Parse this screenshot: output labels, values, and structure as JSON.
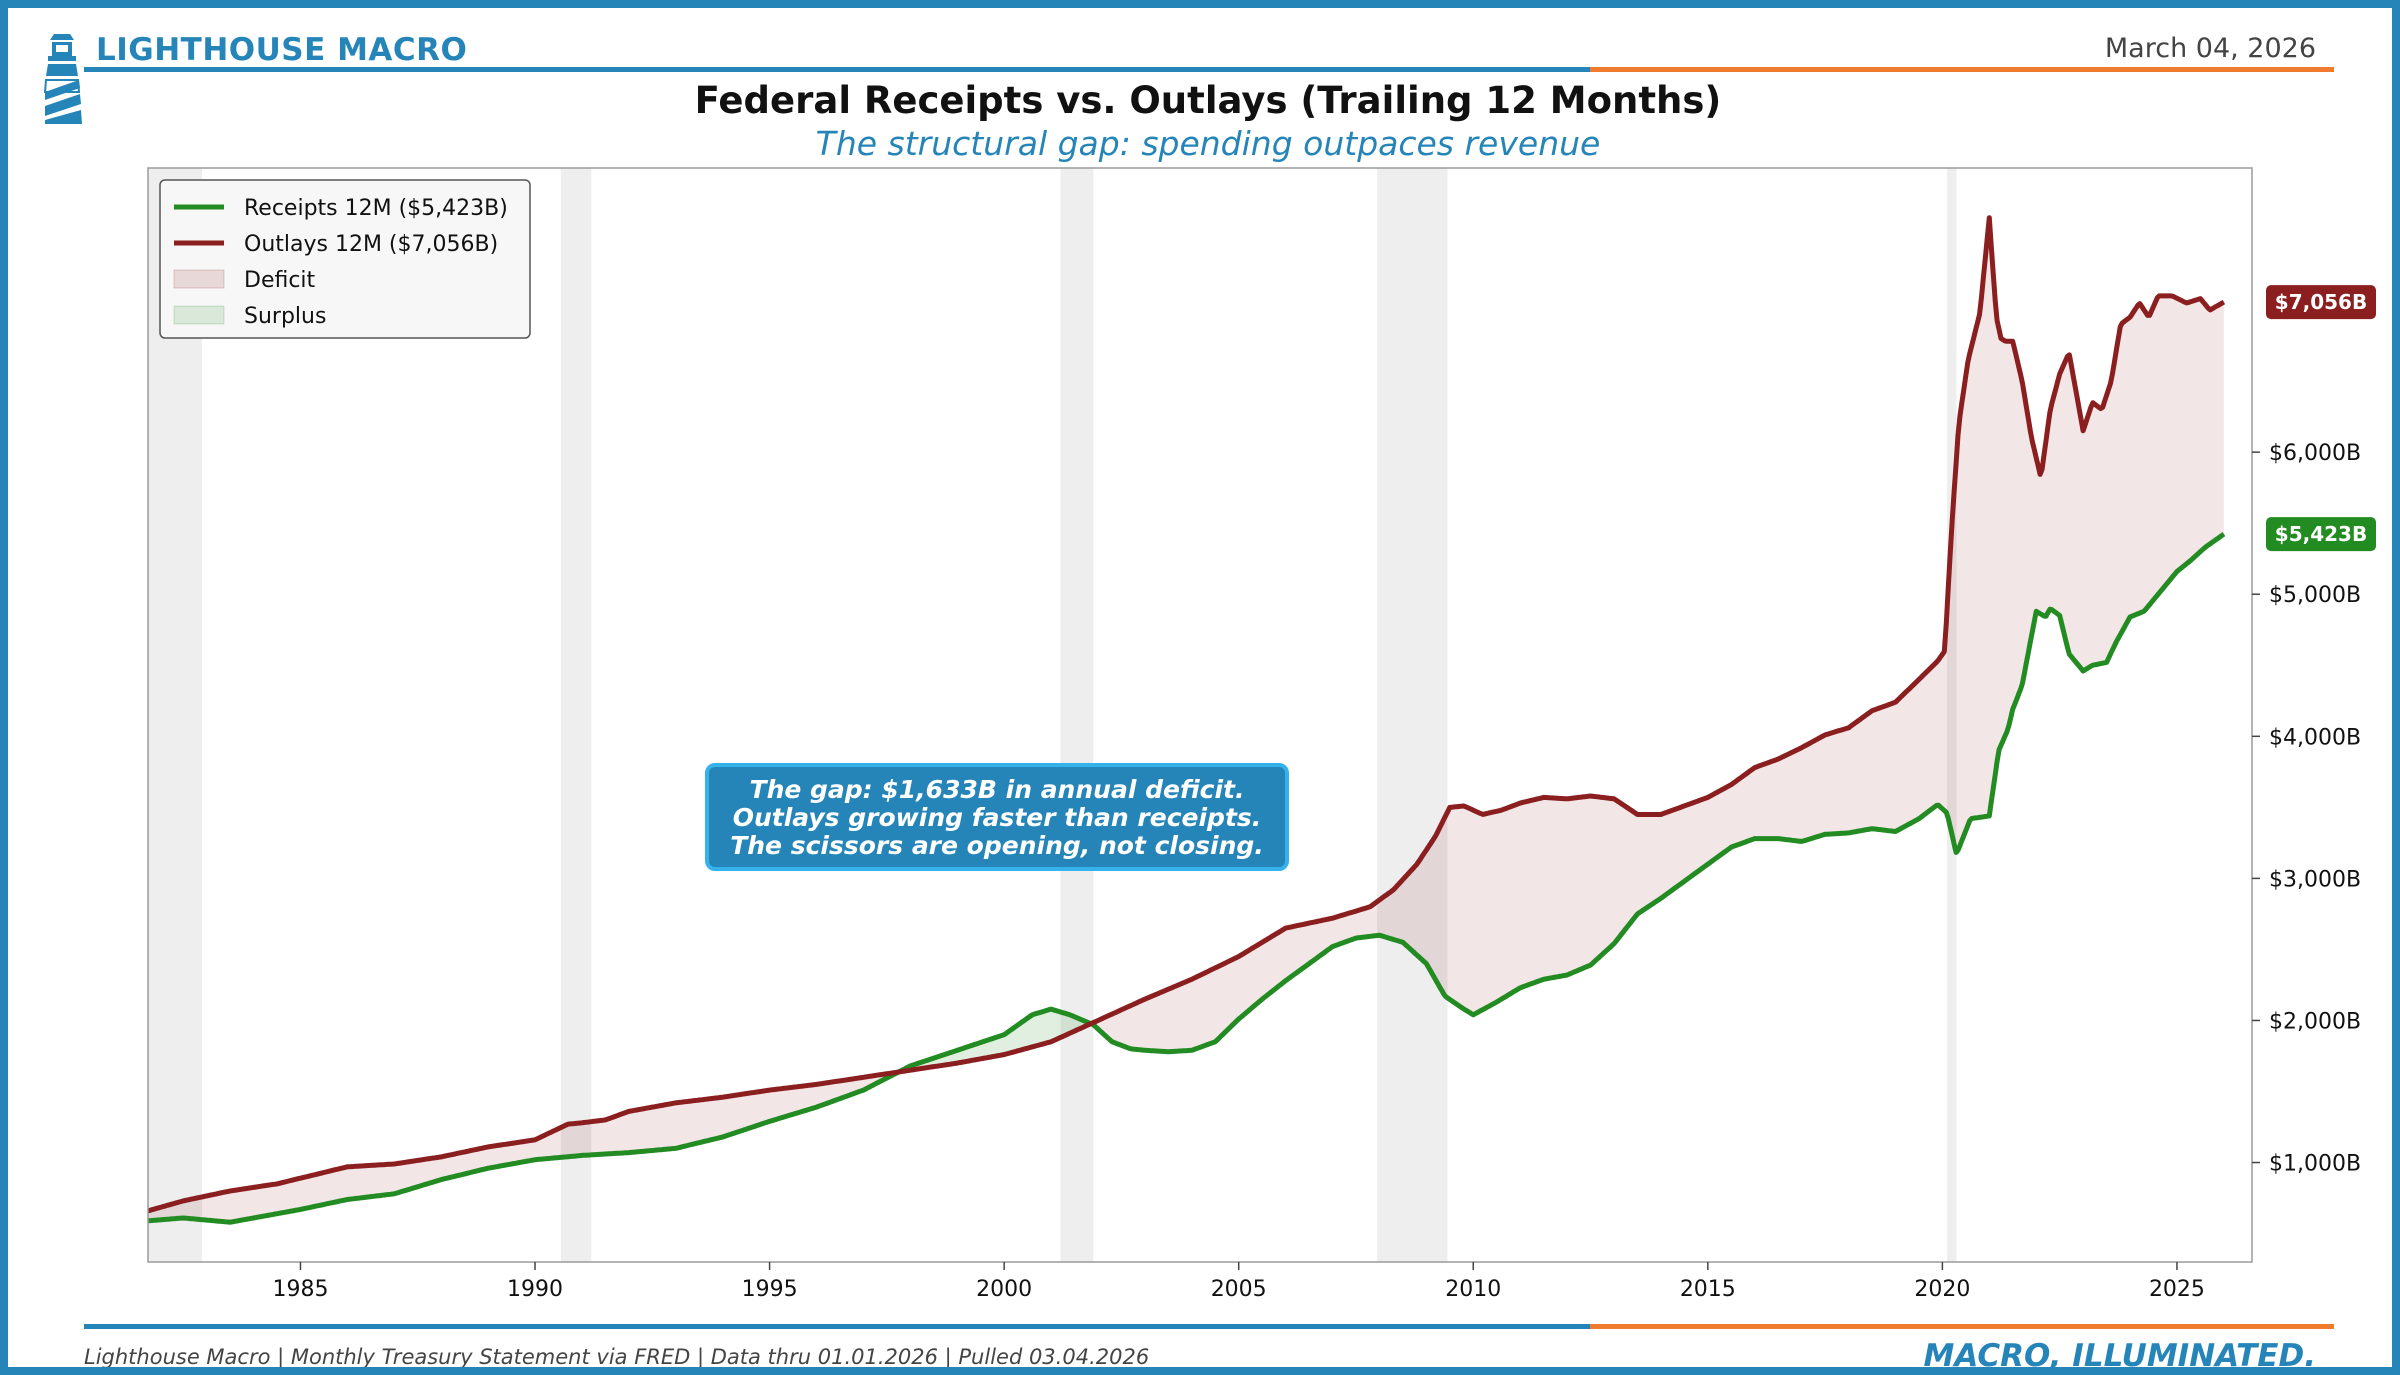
{
  "header": {
    "brand": "LIGHTHOUSE MACRO",
    "date": "March 04, 2026",
    "title": "Federal Receipts vs. Outlays (Trailing 12 Months)",
    "subtitle": "The structural gap: spending outpaces revenue"
  },
  "footer": {
    "source": "Lighthouse Macro | Monthly Treasury Statement via FRED | Data thru 01.01.2026 | Pulled 03.04.2026",
    "tagline": "MACRO, ILLUMINATED."
  },
  "annotation": {
    "lines": [
      "The gap: $1,633B in annual deficit.",
      "Outlays growing faster than receipts.",
      "The scissors are opening, not closing."
    ]
  },
  "colors": {
    "accent": "#2685b8",
    "accent_orange": "#f07a2e",
    "receipts": "#228b22",
    "outlays": "#8b1e1e",
    "deficit_fill": "#8b1e1e",
    "surplus_fill": "#228b22",
    "recession": "#dddddd"
  },
  "chart_data": {
    "type": "line",
    "title": "Federal Receipts vs. Outlays (Trailing 12 Months)",
    "subtitle": "The structural gap: spending outpaces revenue",
    "xlabel": "",
    "ylabel": "",
    "xlim": [
      1981.75,
      2026.6
    ],
    "ylim": [
      300,
      8000
    ],
    "x_ticks": [
      1985,
      1990,
      1995,
      2000,
      2005,
      2010,
      2015,
      2020,
      2025
    ],
    "x_tick_labels": [
      "1985",
      "1990",
      "1995",
      "2000",
      "2005",
      "2010",
      "2015",
      "2020",
      "2025"
    ],
    "y_ticks": [
      1000,
      2000,
      3000,
      4000,
      5000,
      6000
    ],
    "y_tick_labels": [
      "$1,000B",
      "$2,000B",
      "$3,000B",
      "$4,000B",
      "$5,000B",
      "$6,000B"
    ],
    "y_axis_side": "right",
    "grid": false,
    "legend_position": "top-left",
    "legend": [
      {
        "label": "Receipts 12M ($5,423B)",
        "kind": "line",
        "color": "#228b22"
      },
      {
        "label": "Outlays 12M ($7,056B)",
        "kind": "line",
        "color": "#8b1e1e"
      },
      {
        "label": "Deficit",
        "kind": "fill",
        "color": "#8b1e1e"
      },
      {
        "label": "Surplus",
        "kind": "fill",
        "color": "#228b22"
      }
    ],
    "recessions": [
      [
        1981.75,
        1982.9
      ],
      [
        1990.55,
        1991.2
      ],
      [
        2001.2,
        2001.9
      ],
      [
        2007.95,
        2009.45
      ],
      [
        2020.1,
        2020.3
      ]
    ],
    "end_labels": [
      {
        "series": "Outlays 12M",
        "label": "$7,056B",
        "value": 7056,
        "color": "#8b1e1e"
      },
      {
        "series": "Receipts 12M",
        "label": "$5,423B",
        "value": 5423,
        "color": "#228b22"
      }
    ],
    "series": [
      {
        "name": "Receipts 12M",
        "color": "#228b22",
        "x": [
          1981.75,
          1982.5,
          1983.5,
          1984.5,
          1985.0,
          1986.0,
          1987.0,
          1988.0,
          1989.0,
          1990.0,
          1991.0,
          1992.0,
          1993.0,
          1994.0,
          1995.0,
          1996.0,
          1997.0,
          1998.0,
          1999.0,
          2000.0,
          2000.6,
          2001.0,
          2001.4,
          2001.9,
          2002.3,
          2002.7,
          2003.0,
          2003.5,
          2004.0,
          2004.5,
          2005.0,
          2005.5,
          2006.0,
          2006.5,
          2007.0,
          2007.5,
          2008.0,
          2008.5,
          2009.0,
          2009.4,
          2009.8,
          2010.0,
          2010.5,
          2011.0,
          2011.5,
          2012.0,
          2012.5,
          2013.0,
          2013.5,
          2014.0,
          2014.5,
          2015.0,
          2015.5,
          2016.0,
          2016.5,
          2017.0,
          2017.5,
          2018.0,
          2018.5,
          2019.0,
          2019.5,
          2019.9,
          2020.1,
          2020.3,
          2020.6,
          2021.0,
          2021.2,
          2021.4,
          2021.5,
          2021.7,
          2022.0,
          2022.2,
          2022.3,
          2022.5,
          2022.7,
          2023.0,
          2023.2,
          2023.5,
          2023.7,
          2024.0,
          2024.3,
          2024.6,
          2025.0,
          2025.3,
          2025.6,
          2026.0
        ],
        "values": [
          590,
          610,
          580,
          640,
          670,
          740,
          780,
          880,
          960,
          1020,
          1050,
          1070,
          1100,
          1180,
          1290,
          1390,
          1510,
          1680,
          1790,
          1900,
          2040,
          2080,
          2040,
          1970,
          1850,
          1800,
          1790,
          1780,
          1790,
          1850,
          2010,
          2150,
          2280,
          2400,
          2520,
          2580,
          2600,
          2550,
          2400,
          2170,
          2080,
          2040,
          2130,
          2230,
          2290,
          2320,
          2390,
          2540,
          2750,
          2860,
          2980,
          3100,
          3220,
          3280,
          3280,
          3260,
          3310,
          3320,
          3350,
          3330,
          3420,
          3520,
          3460,
          3170,
          3420,
          3440,
          3900,
          4050,
          4190,
          4360,
          4880,
          4840,
          4900,
          4850,
          4580,
          4460,
          4500,
          4520,
          4660,
          4840,
          4880,
          5000,
          5160,
          5240,
          5330,
          5423
        ]
      },
      {
        "name": "Outlays 12M",
        "color": "#8b1e1e",
        "x": [
          1981.75,
          1982.5,
          1983.5,
          1984.5,
          1985.0,
          1986.0,
          1987.0,
          1988.0,
          1989.0,
          1990.0,
          1990.7,
          1991.0,
          1991.5,
          1992.0,
          1993.0,
          1994.0,
          1995.0,
          1996.0,
          1997.0,
          1998.0,
          1999.0,
          2000.0,
          2001.0,
          2002.0,
          2003.0,
          2004.0,
          2005.0,
          2006.0,
          2007.0,
          2007.8,
          2008.3,
          2008.8,
          2009.2,
          2009.5,
          2009.8,
          2010.2,
          2010.6,
          2011.0,
          2011.5,
          2012.0,
          2012.5,
          2013.0,
          2013.5,
          2014.0,
          2014.5,
          2015.0,
          2015.5,
          2016.0,
          2016.5,
          2017.0,
          2017.5,
          2018.0,
          2018.5,
          2019.0,
          2019.5,
          2019.9,
          2020.05,
          2020.2,
          2020.35,
          2020.55,
          2020.8,
          2021.0,
          2021.15,
          2021.25,
          2021.35,
          2021.5,
          2021.7,
          2021.9,
          2022.1,
          2022.3,
          2022.5,
          2022.7,
          2023.0,
          2023.2,
          2023.4,
          2023.6,
          2023.8,
          2024.0,
          2024.2,
          2024.4,
          2024.6,
          2024.9,
          2025.2,
          2025.5,
          2025.7,
          2026.0
        ],
        "values": [
          660,
          730,
          800,
          850,
          890,
          970,
          990,
          1040,
          1110,
          1160,
          1270,
          1280,
          1300,
          1360,
          1420,
          1460,
          1510,
          1550,
          1600,
          1650,
          1700,
          1760,
          1850,
          2000,
          2150,
          2290,
          2450,
          2650,
          2720,
          2800,
          2920,
          3100,
          3300,
          3500,
          3510,
          3450,
          3480,
          3530,
          3570,
          3560,
          3580,
          3560,
          3450,
          3450,
          3510,
          3570,
          3660,
          3780,
          3840,
          3920,
          4010,
          4060,
          4180,
          4240,
          4400,
          4530,
          4600,
          5480,
          6200,
          6650,
          6980,
          7650,
          6950,
          6800,
          6780,
          6780,
          6500,
          6100,
          5820,
          6300,
          6550,
          6700,
          6150,
          6350,
          6300,
          6500,
          6900,
          6950,
          7050,
          6950,
          7100,
          7100,
          7050,
          7080,
          7000,
          7056
        ]
      }
    ]
  }
}
